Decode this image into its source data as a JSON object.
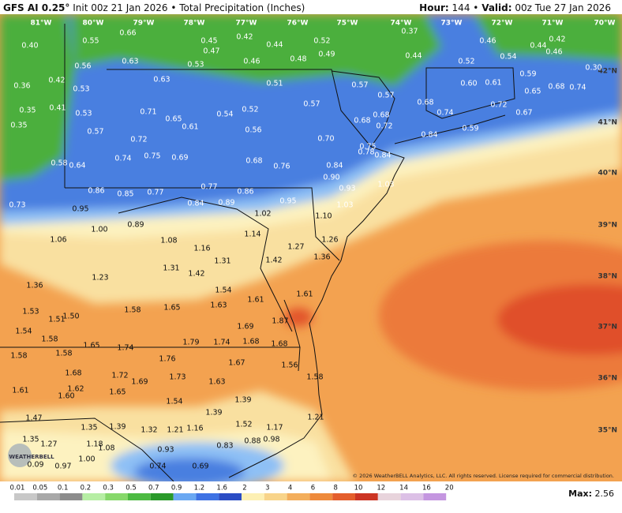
{
  "header": {
    "model": "GFS AI 0.25°",
    "init": "Init 00z 21 Jan 2026 • Total Precipitation (Inches)",
    "hour_label": "Hour:",
    "hour": "144",
    "separator": "•",
    "valid_label": "Valid:",
    "valid": "00z Tue 27 Jan 2026"
  },
  "longitudes": [
    "81°W",
    "80°W",
    "79°W",
    "78°W",
    "77°W",
    "76°W",
    "75°W",
    "74°W",
    "73°W",
    "72°W",
    "71°W",
    "70°W"
  ],
  "latitudes": [
    "42°N",
    "41°N",
    "40°N",
    "39°N",
    "38°N",
    "37°N",
    "36°N",
    "35°N"
  ],
  "points": [
    "0.40",
    "0.55",
    "0.66",
    "0.45",
    "0.42",
    "0.47",
    "0.44",
    "0.52",
    "0.37",
    "0.46",
    "0.42",
    "0.44",
    "0.46",
    "0.49",
    "0.48",
    "0.46",
    "0.53",
    "0.63",
    "0.56",
    "0.44",
    "0.52",
    "0.54",
    "0.30",
    "0.42",
    "0.36",
    "0.53",
    "0.63",
    "0.51",
    "0.57",
    "0.57",
    "0.60",
    "0.61",
    "0.59",
    "0.68",
    "0.74",
    "0.65",
    "0.35",
    "0.41",
    "0.53",
    "0.71",
    "0.65",
    "0.61",
    "0.54",
    "0.52",
    "0.57",
    "0.68",
    "0.72",
    "0.67",
    "0.74",
    "0.68",
    "0.68",
    "0.72",
    "0.56",
    "0.35",
    "0.57",
    "0.72",
    "0.70",
    "0.59",
    "0.84",
    "0.75",
    "0.78",
    "0.84",
    "0.74",
    "0.75",
    "0.69",
    "0.68",
    "0.76",
    "0.84",
    "0.58",
    "0.64",
    "0.90",
    "0.93",
    "1.03",
    "0.86",
    "0.85",
    "0.77",
    "0.77",
    "0.86",
    "0.84",
    "0.89",
    "1.03",
    "0.95",
    "0.73",
    "0.95",
    "1.02",
    "1.10",
    "0.89",
    "1.00",
    "1.14",
    "1.26",
    "1.06",
    "1.08",
    "1.16",
    "1.27",
    "1.36",
    "1.31",
    "1.42",
    "1.31",
    "1.42",
    "1.23",
    "1.36",
    "1.54",
    "1.61",
    "1.61",
    "1.63",
    "1.53",
    "1.58",
    "1.65",
    "1.51",
    "1.50",
    "1.87",
    "1.69",
    "1.54",
    "1.58",
    "1.79",
    "1.74",
    "1.68",
    "1.68",
    "1.65",
    "1.74",
    "1.58",
    "1.58",
    "1.76",
    "1.67",
    "1.56",
    "1.68",
    "1.72",
    "1.69",
    "1.73",
    "1.63",
    "1.58",
    "1.62",
    "1.61",
    "1.60",
    "1.65",
    "1.54",
    "1.39",
    "1.39",
    "1.47",
    "1.35",
    "1.39",
    "1.32",
    "1.21",
    "1.16",
    "1.52",
    "1.17",
    "1.21",
    "1.35",
    "1.27",
    "1.18",
    "1.08",
    "0.93",
    "0.83",
    "0.88",
    "0.98",
    "0.09",
    "0.97",
    "1.00",
    "0.74",
    "0.69"
  ],
  "copyright": "© 2026 WeatherBELL Analytics, LLC. All rights reserved. License required for commercial distribution.",
  "logo": "WEATHERBELL",
  "colorbar": {
    "labels": [
      "0.01",
      "0.05",
      "0.1",
      "0.2",
      "0.3",
      "0.5",
      "0.7",
      "0.9",
      "1.2",
      "1.6",
      "2",
      "3",
      "4",
      "6",
      "8",
      "10",
      "12",
      "14",
      "16",
      "20"
    ],
    "colors": [
      "#c8c8c8",
      "#a8a8a8",
      "#8c8c8c",
      "#b6eea4",
      "#86d86a",
      "#4cba42",
      "#2a9a2a",
      "#6aa8f2",
      "#3e72e4",
      "#2a4cc4",
      "#fdf0b4",
      "#f8d48a",
      "#f3ae5c",
      "#ee8a3c",
      "#e45e2c",
      "#cc3424",
      "#e8d4dc",
      "#dcc0e6",
      "#c496e0"
    ],
    "max_label": "Max:",
    "max": "2.56"
  }
}
